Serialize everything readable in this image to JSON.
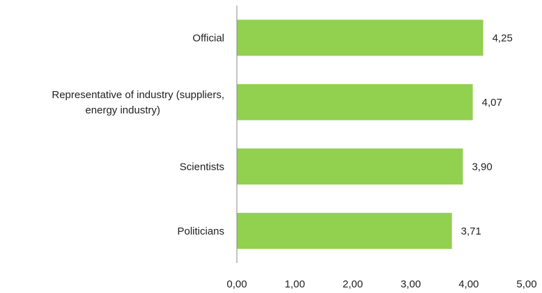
{
  "chart_data": {
    "type": "bar",
    "orientation": "horizontal",
    "categories": [
      [
        "Official"
      ],
      [
        "Representative of industry (suppliers,",
        "energy industry)"
      ],
      [
        "Scientists"
      ],
      [
        "Politicians"
      ]
    ],
    "values": [
      4.25,
      4.07,
      3.9,
      3.71
    ],
    "value_labels": [
      "4,25",
      "4,07",
      "3,90",
      "3,71"
    ],
    "xlim": [
      0,
      5
    ],
    "x_ticks": [
      0,
      1,
      2,
      3,
      4,
      5
    ],
    "x_tick_labels": [
      "0,00",
      "1,00",
      "2,00",
      "3,00",
      "4,00",
      "5,00"
    ],
    "title": "",
    "xlabel": "",
    "ylabel": "",
    "grid": false,
    "legend": "none",
    "bar_color": "#92d050"
  }
}
